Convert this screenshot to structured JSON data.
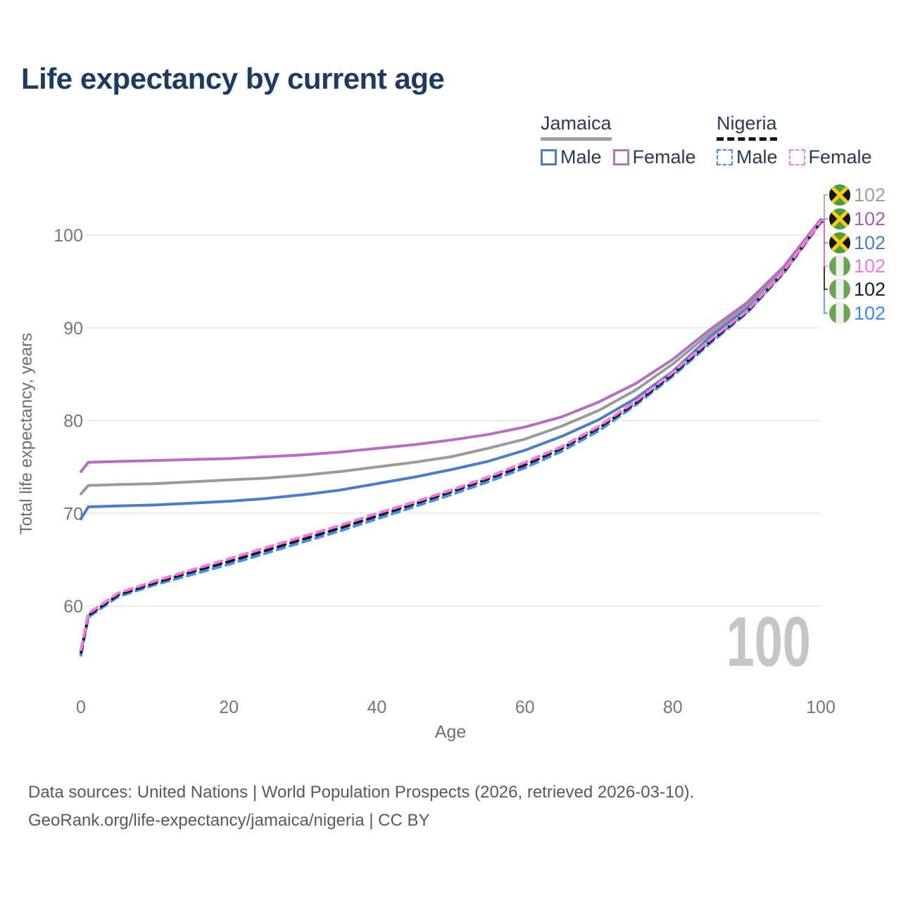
{
  "title": "Life expectancy by current age",
  "legend": {
    "groups": [
      {
        "country": "Jamaica",
        "line_style": "solid",
        "underline_color": "#9e9e9e",
        "items": [
          {
            "label": "Male",
            "color": "#4f7dc3",
            "dashed": false
          },
          {
            "label": "Female",
            "color": "#b778bb",
            "dashed": false
          }
        ]
      },
      {
        "country": "Nigeria",
        "line_style": "dashed",
        "underline_color": "#161616",
        "items": [
          {
            "label": "Male",
            "color": "#4a8cf5",
            "dashed": true
          },
          {
            "label": "Female",
            "color": "#fc7ce0",
            "dashed": true
          }
        ]
      }
    ]
  },
  "watermark_age": "100",
  "footer": {
    "line1": "Data sources: United Nations | World Population Prospects (2026, retrieved 2026-03-10).",
    "line2": "GeoRank.org/life-expectancy/jamaica/nigeria | CC BY"
  },
  "chart_data": {
    "type": "line",
    "title": "Life expectancy by current age",
    "xlabel": "Age",
    "ylabel": "Total life expectancy, years",
    "xlim": [
      0,
      100
    ],
    "ylim": [
      54,
      104
    ],
    "xticks": [
      0,
      20,
      40,
      60,
      80,
      100
    ],
    "yticks": [
      60,
      70,
      80,
      90,
      100
    ],
    "grid": "horizontal",
    "legend_position": "top-right",
    "x": [
      0,
      1,
      5,
      10,
      15,
      20,
      25,
      30,
      35,
      40,
      45,
      50,
      55,
      60,
      65,
      70,
      75,
      80,
      85,
      90,
      95,
      100
    ],
    "series": [
      {
        "name": "Jamaica Male",
        "country": "jamaica",
        "sex": "male",
        "color": "#4f7dc3",
        "dashed": false,
        "row": 2,
        "values": [
          69.4,
          70.7,
          70.8,
          70.9,
          71.1,
          71.3,
          71.6,
          72.0,
          72.5,
          73.2,
          73.9,
          74.7,
          75.6,
          76.8,
          78.3,
          80.1,
          82.4,
          85.3,
          89.0,
          92.1,
          96.2,
          101.5
        ],
        "end_label": "102",
        "end_label_color": "#4f7dc3"
      },
      {
        "name": "Jamaica All",
        "country": "jamaica",
        "sex": "all",
        "color": "#9b9b9b",
        "dashed": false,
        "row": 0,
        "values": [
          72.1,
          73.0,
          73.1,
          73.2,
          73.4,
          73.6,
          73.8,
          74.1,
          74.5,
          75.0,
          75.5,
          76.1,
          77.0,
          78.0,
          79.4,
          81.1,
          83.3,
          86.1,
          89.4,
          92.4,
          96.4,
          101.6
        ],
        "end_label": "102",
        "end_label_color": "#9e9e9e"
      },
      {
        "name": "Jamaica Female",
        "country": "jamaica",
        "sex": "female",
        "color": "#b470bc",
        "dashed": false,
        "row": 1,
        "values": [
          74.5,
          75.5,
          75.6,
          75.7,
          75.8,
          75.9,
          76.1,
          76.3,
          76.6,
          77.0,
          77.4,
          77.9,
          78.5,
          79.3,
          80.4,
          82.0,
          84.0,
          86.6,
          89.8,
          92.7,
          96.6,
          101.7
        ],
        "end_label": "102",
        "end_label_color": "#a75fae"
      },
      {
        "name": "Nigeria Male",
        "country": "nigeria",
        "sex": "male",
        "color": "#4a8cf5",
        "dashed": true,
        "row": 5,
        "values": [
          54.7,
          58.8,
          61.0,
          62.3,
          63.4,
          64.5,
          65.7,
          66.9,
          68.1,
          69.4,
          70.7,
          72.0,
          73.4,
          74.9,
          76.7,
          78.9,
          81.7,
          84.8,
          88.3,
          91.6,
          95.9,
          101.4
        ],
        "end_label": "102",
        "end_label_color": "#3d86f7"
      },
      {
        "name": "Nigeria All",
        "country": "nigeria",
        "sex": "all",
        "color": "#1c1c1c",
        "dashed": true,
        "row": 4,
        "values": [
          55.0,
          59.0,
          61.2,
          62.5,
          63.7,
          64.8,
          66.0,
          67.2,
          68.4,
          69.7,
          71.0,
          72.3,
          73.7,
          75.2,
          77.0,
          79.2,
          81.9,
          85.0,
          88.5,
          91.7,
          96.0,
          101.4
        ],
        "end_label": "102",
        "end_label_color": "#1c1c1c"
      },
      {
        "name": "Nigeria Female",
        "country": "nigeria",
        "sex": "female",
        "color": "#fb78e4",
        "dashed": true,
        "row": 3,
        "values": [
          55.3,
          59.2,
          61.4,
          62.7,
          63.9,
          65.1,
          66.3,
          67.5,
          68.7,
          70.0,
          71.2,
          72.5,
          73.9,
          75.5,
          77.2,
          79.4,
          82.1,
          85.2,
          88.7,
          91.8,
          96.1,
          101.5
        ],
        "end_label": "102",
        "end_label_color": "#fb78e4"
      }
    ],
    "flag_colors": {
      "jamaica": {
        "green": "#4f9c3e",
        "yellow": "#f3cf1a",
        "black": "#161616"
      },
      "nigeria": {
        "green": "#6aa455",
        "white": "#efefec"
      }
    }
  }
}
